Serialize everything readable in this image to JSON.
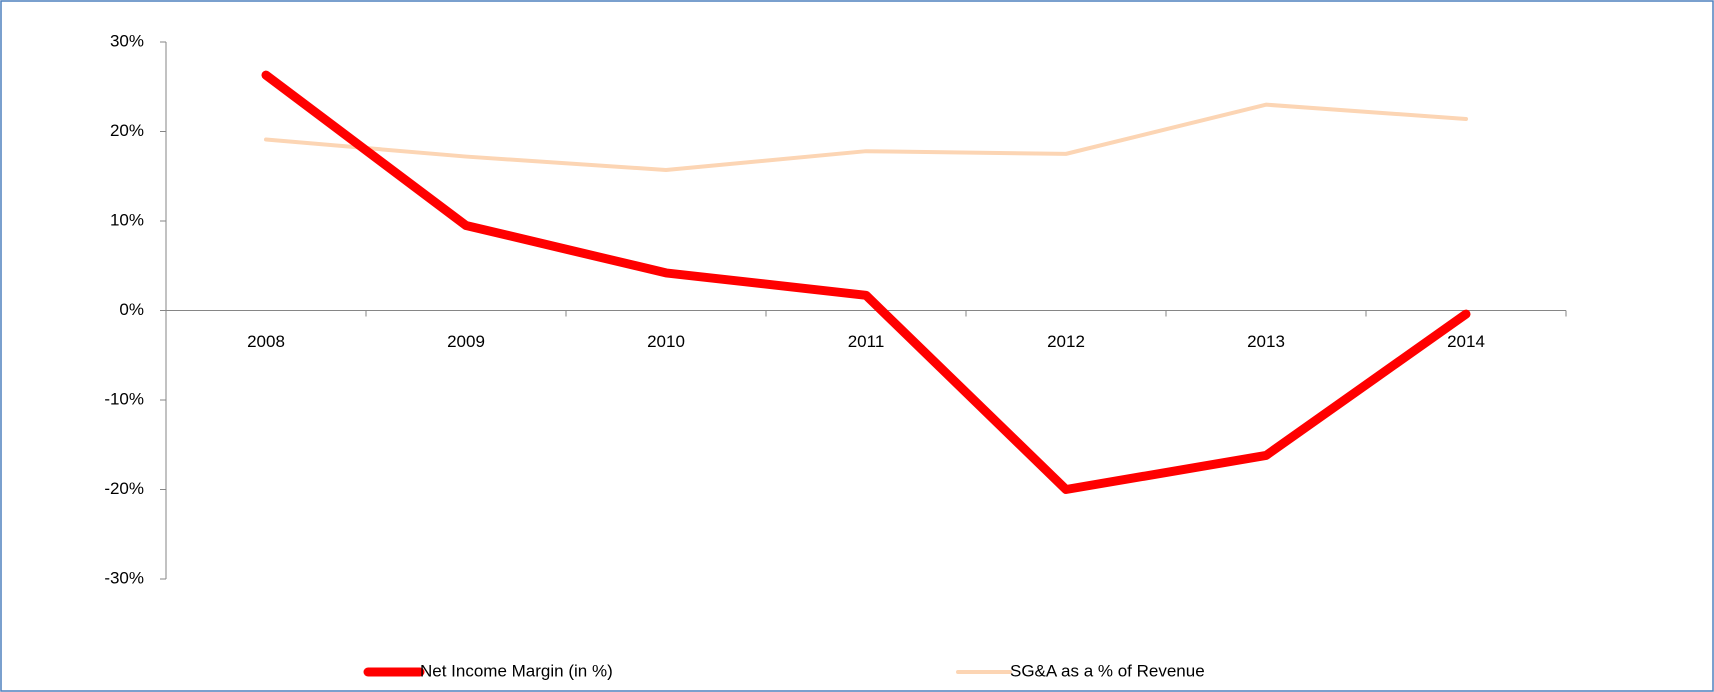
{
  "chart_data": {
    "type": "line",
    "categories": [
      "2008",
      "2009",
      "2010",
      "2011",
      "2012",
      "2013",
      "2014"
    ],
    "series": [
      {
        "name": "Net Income Margin (in %)",
        "color": "#ff0000",
        "values": [
          26.3,
          9.5,
          4.2,
          1.7,
          -20.0,
          -16.2,
          -0.4
        ]
      },
      {
        "name": "SG&A as a % of Revenue",
        "color": "#fcd5b4",
        "values": [
          19.1,
          17.2,
          15.7,
          17.8,
          17.5,
          23.0,
          21.4
        ]
      }
    ],
    "ylim": [
      -30,
      30
    ],
    "yticks": [
      {
        "value": -30,
        "label": "-30%"
      },
      {
        "value": -20,
        "label": "-20%"
      },
      {
        "value": -10,
        "label": "-10%"
      },
      {
        "value": 0,
        "label": "0%"
      },
      {
        "value": 10,
        "label": "10%"
      },
      {
        "value": 20,
        "label": "20%"
      },
      {
        "value": 30,
        "label": "30%"
      }
    ],
    "legend": "bottom"
  }
}
